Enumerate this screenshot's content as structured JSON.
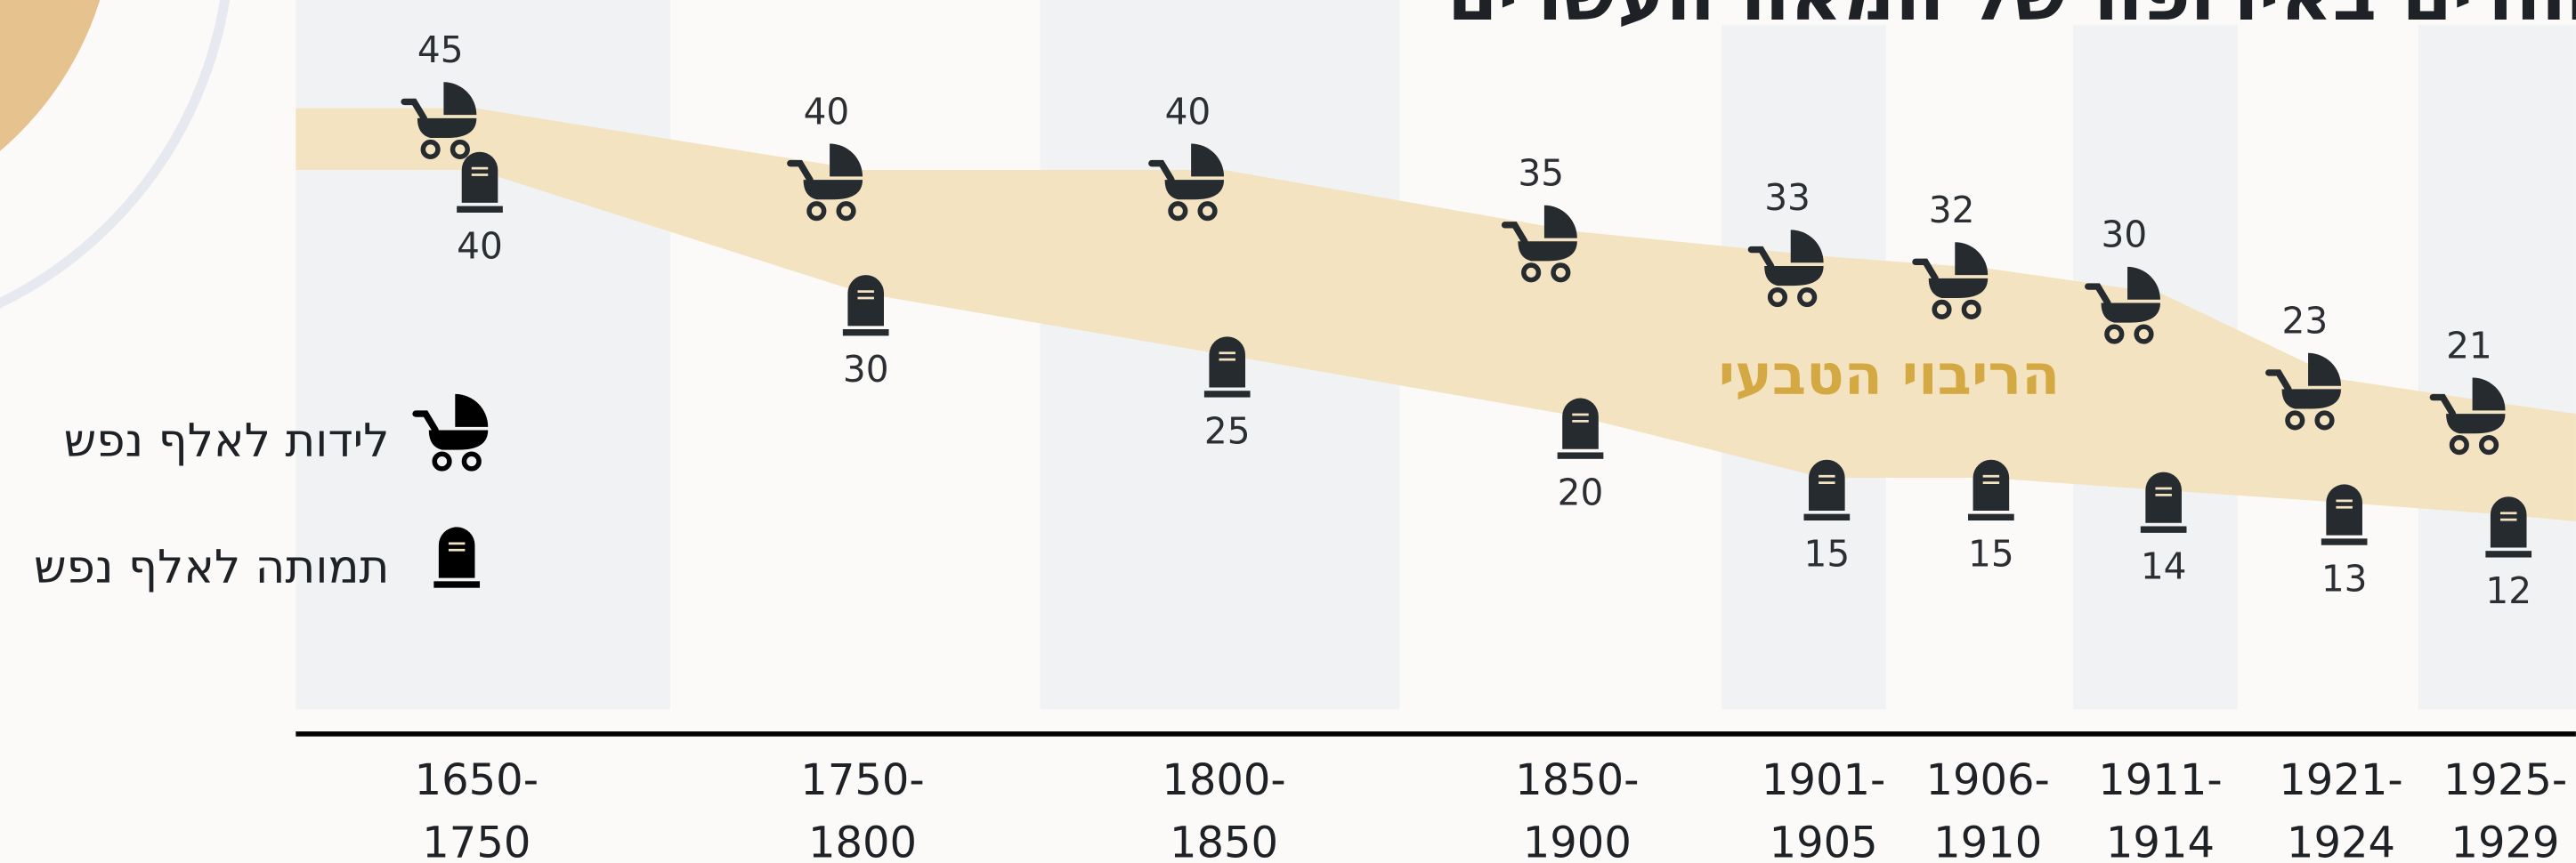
{
  "chart_data": {
    "type": "band",
    "title": "היהודים באירופה של המאה העשרים",
    "band_label": "הריבוי הטבעי",
    "categories": [
      "1650-1750",
      "1750-1800",
      "1800-1850",
      "1850-1900",
      "1901-1905",
      "1906-1910",
      "1911-1914",
      "1921-1924",
      "1925-1929"
    ],
    "series": [
      {
        "name": "לידות לאלף נפש",
        "color": "#262b30",
        "values": [
          45,
          40,
          40,
          35,
          33,
          32,
          30,
          23,
          21
        ]
      },
      {
        "name": "תמותה לאלף נפש",
        "color": "#262b30",
        "values": [
          40,
          30,
          25,
          20,
          15,
          15,
          14,
          13,
          12
        ]
      }
    ],
    "band_color": "#f3e3c0"
  }
}
